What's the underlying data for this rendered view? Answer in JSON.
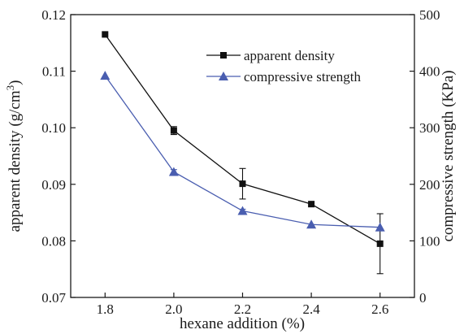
{
  "chart_data": {
    "type": "line",
    "xlabel": "hexane addition  (%)",
    "ylabel_left_main": "apparent density  (g/cm",
    "ylabel_left_sup": "3",
    "ylabel_left_close": ")",
    "ylabel_right": "compressive strength  (KPa)",
    "xlim": [
      1.7,
      2.7
    ],
    "ylim_left": [
      0.07,
      0.12
    ],
    "ylim_right": [
      0,
      500
    ],
    "x_ticks": [
      1.8,
      2.0,
      2.2,
      2.4,
      2.6
    ],
    "x_tick_labels": [
      "1.8",
      "2.0",
      "2.2",
      "2.4",
      "2.6"
    ],
    "y_left_ticks": [
      0.07,
      0.08,
      0.09,
      0.1,
      0.11,
      0.12
    ],
    "y_left_tick_labels": [
      "0.07",
      "0.08",
      "0.09",
      "0.10",
      "0.11",
      "0.12"
    ],
    "y_right_ticks": [
      0,
      100,
      200,
      300,
      400,
      500
    ],
    "y_right_tick_labels": [
      "0",
      "100",
      "200",
      "300",
      "400",
      "500"
    ],
    "legend_position": "top-right",
    "grid": false,
    "series": [
      {
        "name": "apparent density",
        "axis": "left",
        "marker": "square",
        "color": "#111111",
        "x": [
          1.8,
          2.0,
          2.2,
          2.4,
          2.6
        ],
        "y": [
          0.1165,
          0.0995,
          0.0901,
          0.0865,
          0.0795
        ],
        "err": [
          0.0,
          0.0007,
          0.0027,
          0.0,
          0.0053
        ]
      },
      {
        "name": "compressive strength",
        "axis": "right",
        "marker": "triangle",
        "color": "#4a5eb0",
        "x": [
          1.8,
          2.0,
          2.2,
          2.4,
          2.6
        ],
        "y": [
          392,
          222,
          153,
          129,
          124
        ],
        "err": [
          0,
          4,
          3,
          0,
          0
        ]
      }
    ]
  }
}
